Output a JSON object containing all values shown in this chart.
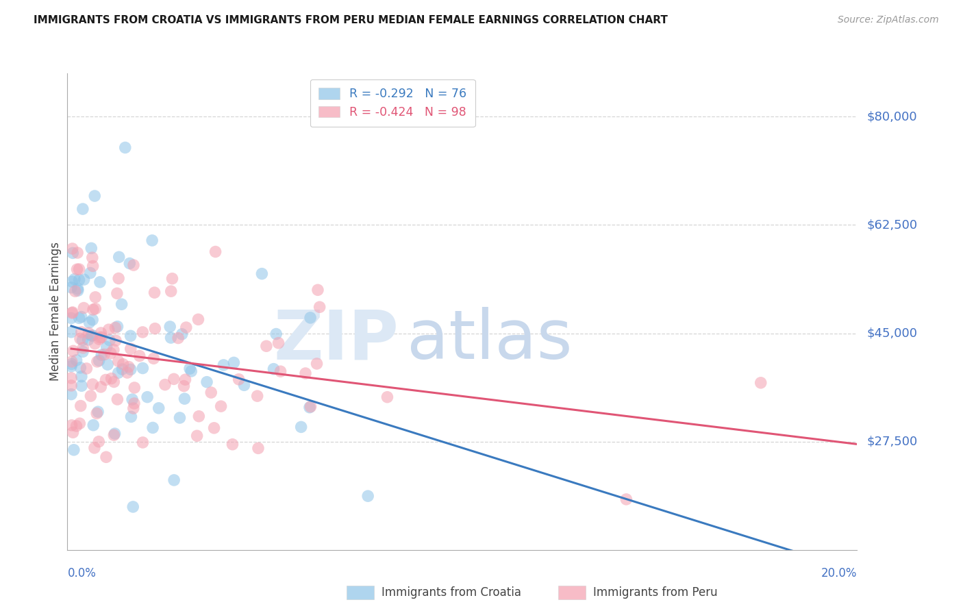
{
  "title": "IMMIGRANTS FROM CROATIA VS IMMIGRANTS FROM PERU MEDIAN FEMALE EARNINGS CORRELATION CHART",
  "source": "Source: ZipAtlas.com",
  "ylabel": "Median Female Earnings",
  "croatia_R": -0.292,
  "croatia_N": 76,
  "peru_R": -0.424,
  "peru_N": 98,
  "croatia_color": "#8ec4e8",
  "peru_color": "#f4a0b0",
  "croatia_line_color": "#3a7abf",
  "peru_line_color": "#e05575",
  "dashed_ext_color": "#b0cce8",
  "label_color": "#4472c4",
  "background_color": "#ffffff",
  "grid_color": "#cccccc",
  "watermark_zip": "ZIP",
  "watermark_atlas": "atlas",
  "watermark_color": "#dce8f5",
  "ytick_positions": [
    27500,
    45000,
    62500,
    80000
  ],
  "ytick_labels": [
    "$27,500",
    "$45,000",
    "$62,500",
    "$80,000"
  ],
  "ylim": [
    10000,
    87000
  ],
  "xlim": [
    0.0,
    0.205
  ]
}
